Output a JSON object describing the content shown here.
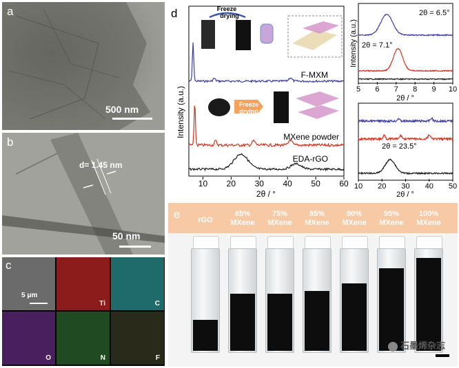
{
  "panel_a": {
    "label": "a",
    "scale": "500 nm"
  },
  "panel_b": {
    "label": "b",
    "scale": "50 nm",
    "d_spacing": "d= 1.45 nm"
  },
  "panel_c": {
    "label": "c",
    "scale": "5 μm",
    "maps": [
      "Ti",
      "C",
      "O",
      "N",
      "F"
    ]
  },
  "panel_d": {
    "label": "d",
    "main": {
      "ylabel": "Intensity (a.u.)",
      "xlabel": "2θ / °",
      "xticks": [
        "10",
        "20",
        "30",
        "40",
        "50",
        "60"
      ],
      "xlim": [
        5,
        60
      ],
      "traces": [
        "F-MXM",
        "MXene powder",
        "EDA-rGO"
      ],
      "colors": {
        "fmxm": "#3c3ca8",
        "mxene": "#d2321e",
        "rgo": "#1a1a1a"
      },
      "annotations": {
        "freeze_top": "Freeze",
        "drying_top": "drying",
        "freeze_mid": "Freeze",
        "drying_mid": "drying"
      }
    },
    "inset_top": {
      "ylabel": "Intensity (a.u.)",
      "xlabel": "2θ / °",
      "xticks": [
        "5",
        "6",
        "7",
        "8",
        "9",
        "10"
      ],
      "xlim": [
        5,
        10
      ],
      "peak1": "2θ = 6.5°",
      "peak2": "2θ = 7.1°"
    },
    "inset_bottom": {
      "xlabel": "2θ / °",
      "xticks": [
        "10",
        "20",
        "30",
        "40",
        "50"
      ],
      "xlim": [
        10,
        50
      ],
      "peak": "2θ = 23.5°"
    }
  },
  "panel_e": {
    "label": "e",
    "header_color": "#f7c9a4",
    "columns": [
      {
        "line1": "rGO",
        "line2": ""
      },
      {
        "line1": "65%",
        "line2": "MXene"
      },
      {
        "line1": "75%",
        "line2": "MXene"
      },
      {
        "line1": "85%",
        "line2": "MXene"
      },
      {
        "line1": "90%",
        "line2": "MXene"
      },
      {
        "line1": "95%",
        "line2": "MXene"
      },
      {
        "line1": "100%",
        "line2": "MXene"
      }
    ],
    "fill_levels": [
      0.3,
      0.55,
      0.55,
      0.58,
      0.65,
      0.8,
      0.9
    ]
  },
  "watermark": "石墨烯杂志"
}
